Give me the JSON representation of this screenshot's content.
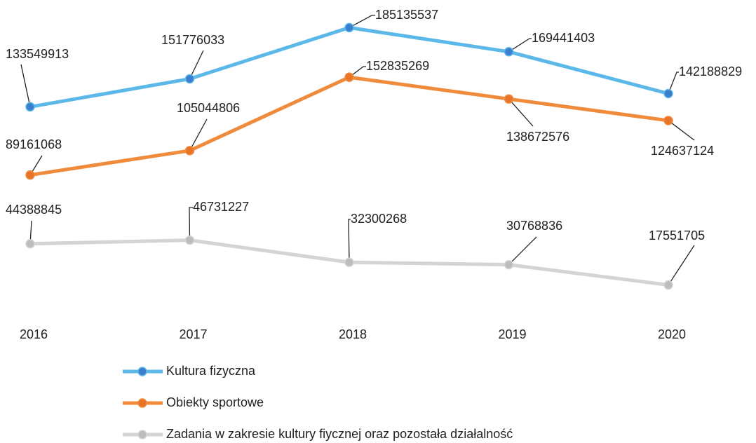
{
  "chart_data": {
    "type": "line",
    "categories": [
      "2016",
      "2017",
      "2018",
      "2019",
      "2020"
    ],
    "series": [
      {
        "name": "Kultura fizyczna",
        "color": "#5bb8e8",
        "marker_color": "#3a7fcf",
        "values": [
          133549913,
          151776033,
          185135537,
          169441403,
          142188829
        ]
      },
      {
        "name": "Obiekty sportowe",
        "color": "#f08b3c",
        "marker_color": "#e8742a",
        "values": [
          89161068,
          105044806,
          152835269,
          138672576,
          124637124
        ]
      },
      {
        "name": "Zadania w zakresie kultury fiycznej oraz pozostała działalność",
        "color": "#d4d4d4",
        "marker_color": "#bdbdbd",
        "values": [
          44388845,
          46731227,
          32300268,
          30768836,
          17551705
        ]
      }
    ],
    "ylim": [
      0,
      194000000
    ]
  }
}
